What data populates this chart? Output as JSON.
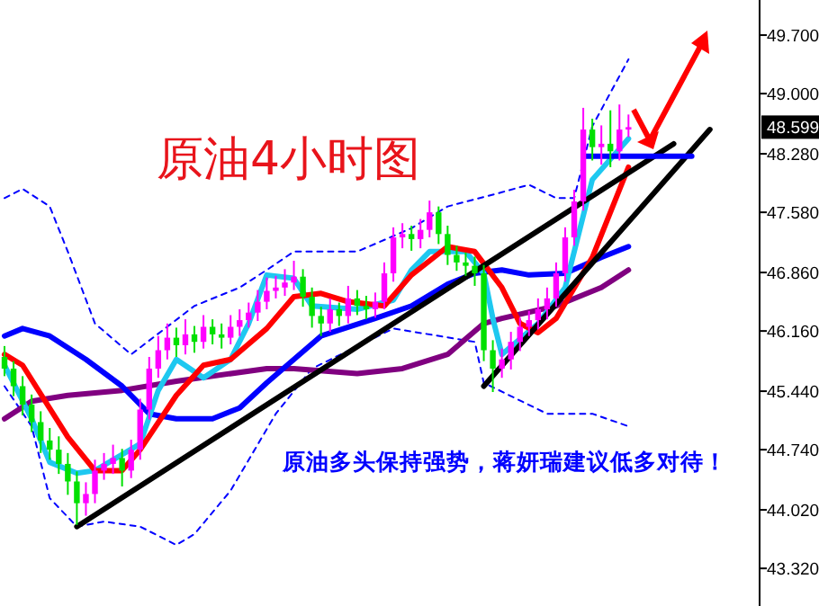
{
  "chart_data": {
    "type": "candlestick",
    "title": "原油4小时图",
    "annotations": [
      "原油多头保持强势，蒋妍瑞建议低多对待！",
      "48.599"
    ],
    "categories": [
      null,
      null,
      null,
      null,
      null,
      null,
      null,
      null,
      null,
      null,
      null,
      null,
      null,
      null,
      null,
      null,
      null,
      null,
      null,
      null,
      null,
      null,
      null,
      null,
      null,
      null,
      null,
      null,
      null,
      null,
      null,
      null,
      null,
      null,
      null,
      null,
      null,
      null,
      null,
      null,
      null,
      null,
      null,
      null,
      null,
      null,
      null,
      null,
      null,
      null,
      null,
      null,
      null,
      null,
      null,
      null,
      null,
      null,
      null,
      null,
      null,
      null,
      null,
      null,
      null,
      null,
      null,
      null,
      null,
      null,
      null,
      null,
      null,
      null,
      null,
      null,
      null,
      null,
      null,
      null,
      null,
      null,
      null,
      null
    ],
    "ohlc": [
      [
        45.85,
        45.98,
        45.62,
        45.71
      ],
      [
        45.71,
        45.8,
        45.38,
        45.5
      ],
      [
        45.5,
        45.62,
        45.15,
        45.28
      ],
      [
        45.28,
        45.4,
        44.95,
        45.07
      ],
      [
        45.07,
        45.2,
        44.7,
        44.85
      ],
      [
        44.85,
        45.0,
        44.62,
        44.74
      ],
      [
        44.74,
        44.9,
        44.45,
        44.57
      ],
      [
        44.57,
        44.7,
        44.2,
        44.36
      ],
      [
        44.36,
        44.48,
        43.84,
        44.1
      ],
      [
        44.1,
        44.35,
        43.95,
        44.21
      ],
      [
        44.21,
        44.62,
        44.1,
        44.49
      ],
      [
        44.49,
        44.7,
        44.38,
        44.57
      ],
      [
        44.57,
        44.8,
        44.45,
        44.64
      ],
      [
        44.64,
        44.75,
        44.3,
        44.49
      ],
      [
        44.49,
        44.86,
        44.4,
        44.74
      ],
      [
        44.74,
        45.35,
        44.62,
        45.22
      ],
      [
        45.22,
        45.85,
        45.1,
        45.71
      ],
      [
        45.71,
        46.1,
        45.6,
        45.93
      ],
      [
        45.93,
        46.25,
        45.82,
        46.08
      ],
      [
        46.08,
        46.2,
        45.85,
        45.99
      ],
      [
        45.99,
        46.3,
        45.88,
        46.12
      ],
      [
        46.12,
        46.22,
        45.9,
        46.03
      ],
      [
        46.03,
        46.35,
        45.95,
        46.21
      ],
      [
        46.21,
        46.3,
        46.0,
        46.12
      ],
      [
        46.12,
        46.25,
        45.95,
        46.08
      ],
      [
        46.08,
        46.35,
        46.0,
        46.21
      ],
      [
        46.21,
        46.42,
        46.1,
        46.29
      ],
      [
        46.29,
        46.5,
        46.2,
        46.38
      ],
      [
        46.38,
        46.65,
        46.28,
        46.51
      ],
      [
        46.51,
        46.8,
        46.42,
        46.64
      ],
      [
        46.64,
        46.82,
        46.55,
        46.68
      ],
      [
        46.68,
        46.9,
        46.58,
        46.74
      ],
      [
        46.74,
        47.0,
        46.65,
        46.81
      ],
      [
        46.81,
        46.9,
        46.45,
        46.57
      ],
      [
        46.57,
        46.68,
        46.2,
        46.34
      ],
      [
        46.34,
        46.45,
        46.1,
        46.25
      ],
      [
        46.25,
        46.55,
        46.15,
        46.42
      ],
      [
        46.42,
        46.5,
        46.22,
        46.34
      ],
      [
        46.34,
        46.7,
        46.25,
        46.55
      ],
      [
        46.55,
        46.65,
        46.35,
        46.46
      ],
      [
        46.46,
        46.58,
        46.3,
        46.42
      ],
      [
        46.42,
        46.62,
        46.32,
        46.51
      ],
      [
        46.51,
        46.98,
        46.42,
        46.85
      ],
      [
        46.85,
        47.4,
        46.75,
        47.28
      ],
      [
        47.28,
        47.45,
        47.15,
        47.32
      ],
      [
        47.32,
        47.42,
        47.12,
        47.26
      ],
      [
        47.26,
        47.5,
        47.15,
        47.37
      ],
      [
        47.37,
        47.72,
        47.28,
        47.58
      ],
      [
        47.58,
        47.65,
        47.2,
        47.32
      ],
      [
        47.32,
        47.42,
        46.95,
        47.07
      ],
      [
        47.07,
        47.18,
        46.88,
        46.98
      ],
      [
        46.98,
        47.1,
        46.82,
        46.94
      ],
      [
        46.94,
        47.05,
        46.7,
        46.85
      ],
      [
        46.85,
        46.95,
        45.8,
        45.93
      ],
      [
        45.93,
        46.05,
        45.43,
        45.71
      ],
      [
        45.71,
        45.95,
        45.6,
        45.82
      ],
      [
        45.82,
        46.15,
        45.7,
        46.03
      ],
      [
        46.03,
        46.32,
        45.92,
        46.21
      ],
      [
        46.21,
        46.4,
        46.1,
        46.29
      ],
      [
        46.29,
        46.55,
        46.18,
        46.42
      ],
      [
        46.42,
        46.68,
        46.3,
        46.55
      ],
      [
        46.55,
        46.98,
        46.45,
        46.85
      ],
      [
        46.85,
        47.4,
        46.75,
        47.28
      ],
      [
        47.28,
        47.85,
        47.18,
        47.71
      ],
      [
        47.71,
        48.83,
        47.6,
        48.57
      ],
      [
        48.57,
        48.7,
        48.2,
        48.36
      ],
      [
        48.36,
        48.62,
        48.15,
        48.4
      ],
      [
        48.4,
        48.8,
        48.12,
        48.31
      ],
      [
        48.31,
        48.87,
        48.2,
        48.57
      ],
      [
        48.57,
        48.75,
        48.48,
        48.599
      ],
      null,
      null,
      null,
      null,
      null,
      null,
      null,
      null,
      null,
      null,
      null,
      null,
      null,
      null
    ],
    "colors": [
      "#00e000",
      "#00e000",
      "#00e000",
      "#00e000",
      "#00e000",
      "#00e000",
      "#00e000",
      "#00e000",
      "#00e000",
      "#ff00ff",
      "#ff00ff",
      "#ff00ff",
      "#ff00ff",
      "#00e000",
      "#ff00ff",
      "#ff00ff",
      "#ff00ff",
      "#ff00ff",
      "#ff00ff",
      "#00e000",
      "#ff00ff",
      "#00e000",
      "#ff00ff",
      "#00e000",
      "#00e000",
      "#ff00ff",
      "#ff00ff",
      "#ff00ff",
      "#ff00ff",
      "#ff00ff",
      "#ff00ff",
      "#ff00ff",
      "#ff00ff",
      "#00e000",
      "#00e000",
      "#00e000",
      "#ff00ff",
      "#00e000",
      "#ff00ff",
      "#00e000",
      "#00e000",
      "#ff00ff",
      "#ff00ff",
      "#ff00ff",
      "#ff00ff",
      "#00e000",
      "#ff00ff",
      "#ff00ff",
      "#00e000",
      "#00e000",
      "#00e000",
      "#00e000",
      "#00e000",
      "#00e000",
      "#00e000",
      "#ff00ff",
      "#ff00ff",
      "#ff00ff",
      "#ff00ff",
      "#ff00ff",
      "#ff00ff",
      "#ff00ff",
      "#ff00ff",
      "#ff00ff",
      "#ff00ff",
      "#00e000",
      "#ff00ff",
      "#00e000",
      "#ff00ff",
      "#ff00ff",
      null,
      null,
      null,
      null,
      null,
      null,
      null,
      null,
      null,
      null,
      null,
      null,
      null,
      null
    ],
    "series": [
      {
        "type": "line",
        "color": "#0000ff",
        "line_style": "dashed",
        "values": [
          47.75,
          null,
          47.86,
          null,
          null,
          47.65,
          null,
          47.11,
          null,
          null,
          46.25,
          null,
          null,
          null,
          45.88,
          null,
          null,
          null,
          null,
          null,
          null,
          46.46,
          null,
          null,
          null,
          null,
          46.68,
          null,
          null,
          46.89,
          null,
          null,
          47.11,
          null,
          null,
          null,
          null,
          null,
          null,
          47.11,
          null,
          null,
          null,
          null,
          null,
          47.39,
          null,
          null,
          null,
          47.65,
          null,
          null,
          null,
          null,
          null,
          47.82,
          null,
          null,
          47.91,
          null,
          null,
          47.75,
          null,
          47.75,
          null,
          48.61,
          null,
          null,
          null,
          49.41,
          null,
          null,
          null,
          null,
          null,
          null,
          null,
          null,
          null,
          null,
          null,
          null,
          null,
          null
        ]
      },
      {
        "type": "line",
        "color": "#0000ff",
        "line_style": "dashed",
        "values": [
          45.5,
          null,
          null,
          45.02,
          null,
          44.16,
          null,
          null,
          43.82,
          null,
          null,
          43.88,
          null,
          null,
          null,
          43.82,
          null,
          null,
          null,
          43.6,
          null,
          43.73,
          null,
          null,
          null,
          44.25,
          null,
          null,
          null,
          null,
          45.17,
          null,
          null,
          null,
          45.71,
          null,
          null,
          null,
          null,
          null,
          null,
          null,
          null,
          46.19,
          null,
          null,
          null,
          null,
          null,
          null,
          null,
          null,
          46.03,
          45.54,
          null,
          null,
          null,
          null,
          null,
          null,
          45.17,
          null,
          null,
          null,
          null,
          45.17,
          null,
          null,
          null,
          45.02,
          null,
          null,
          null,
          null,
          null,
          null,
          null,
          null,
          null,
          null,
          null,
          null,
          null,
          null
        ]
      },
      {
        "type": "line",
        "color": "#800080",
        "line_style": "solid",
        "values": [
          45.11,
          null,
          null,
          45.32,
          null,
          null,
          null,
          45.39,
          null,
          null,
          null,
          null,
          null,
          45.45,
          null,
          null,
          null,
          null,
          null,
          45.56,
          null,
          null,
          null,
          null,
          null,
          null,
          null,
          null,
          null,
          45.71,
          null,
          null,
          45.71,
          null,
          null,
          null,
          null,
          null,
          null,
          45.65,
          null,
          null,
          null,
          null,
          45.71,
          null,
          null,
          null,
          null,
          45.88,
          null,
          null,
          null,
          46.25,
          null,
          46.31,
          null,
          null,
          null,
          null,
          null,
          46.46,
          null,
          null,
          null,
          null,
          46.68,
          null,
          null,
          46.89,
          null,
          null,
          null,
          null,
          null,
          null,
          null,
          null,
          null,
          null,
          null,
          null,
          null,
          null
        ]
      },
      {
        "type": "line",
        "color": "#0000ff",
        "line_style": "solid",
        "values": [
          46.1,
          null,
          46.19,
          null,
          null,
          46.1,
          null,
          null,
          null,
          45.82,
          null,
          null,
          null,
          45.5,
          null,
          null,
          45.17,
          null,
          null,
          45.11,
          null,
          null,
          null,
          45.11,
          null,
          null,
          45.24,
          null,
          null,
          45.54,
          null,
          null,
          null,
          null,
          null,
          46.1,
          null,
          null,
          null,
          null,
          null,
          46.31,
          null,
          null,
          null,
          46.46,
          null,
          null,
          null,
          46.72,
          null,
          null,
          46.85,
          null,
          null,
          46.89,
          null,
          null,
          46.83,
          null,
          null,
          null,
          46.85,
          null,
          null,
          null,
          47.04,
          null,
          null,
          47.17,
          null,
          null,
          null,
          null,
          null,
          null,
          null,
          null,
          null,
          null,
          null,
          null,
          null,
          null
        ]
      },
      {
        "type": "line",
        "color": "#1ec8f0",
        "line_style": "solid",
        "values": [
          45.75,
          null,
          null,
          45.11,
          null,
          44.59,
          null,
          null,
          44.46,
          null,
          44.49,
          null,
          null,
          null,
          null,
          44.81,
          null,
          45.45,
          null,
          45.82,
          null,
          null,
          45.6,
          null,
          null,
          45.82,
          null,
          46.25,
          null,
          46.83,
          null,
          null,
          46.79,
          null,
          46.46,
          null,
          null,
          null,
          null,
          46.42,
          null,
          null,
          null,
          46.53,
          null,
          46.89,
          null,
          47.11,
          null,
          null,
          null,
          47.11,
          null,
          46.85,
          46.31,
          45.88,
          null,
          null,
          null,
          46.25,
          null,
          null,
          46.68,
          null,
          null,
          47.97,
          null,
          null,
          null,
          48.46,
          null,
          null,
          null,
          null,
          null,
          null,
          null,
          null,
          null,
          null,
          null,
          null,
          null,
          null
        ]
      },
      {
        "type": "line",
        "color": "#ff0000",
        "line_style": "solid",
        "values": [
          45.88,
          null,
          45.75,
          null,
          null,
          null,
          null,
          44.89,
          null,
          null,
          44.49,
          null,
          null,
          44.49,
          null,
          44.74,
          null,
          null,
          null,
          45.39,
          null,
          null,
          45.75,
          null,
          null,
          45.82,
          null,
          null,
          null,
          46.19,
          null,
          null,
          46.57,
          null,
          null,
          46.61,
          null,
          null,
          46.51,
          null,
          null,
          null,
          46.46,
          null,
          null,
          46.83,
          null,
          null,
          null,
          47.17,
          null,
          null,
          47.11,
          null,
          null,
          46.68,
          null,
          46.25,
          null,
          46.14,
          null,
          46.31,
          null,
          null,
          null,
          47.04,
          null,
          null,
          null,
          48.12,
          null,
          null,
          null,
          null,
          null,
          null,
          null,
          null,
          null,
          null,
          null,
          null,
          null,
          null
        ]
      },
      {
        "type": "line",
        "color": "#000000",
        "line_style": "solid",
        "values": [
          null,
          null,
          null,
          null,
          null,
          null,
          null,
          null,
          43.82,
          null,
          null,
          null,
          null,
          null,
          null,
          null,
          null,
          null,
          null,
          null,
          null,
          null,
          null,
          null,
          null,
          null,
          null,
          null,
          null,
          null,
          null,
          null,
          null,
          null,
          null,
          null,
          null,
          null,
          null,
          null,
          null,
          null,
          null,
          null,
          null,
          null,
          null,
          null,
          null,
          null,
          null,
          null,
          null,
          null,
          null,
          null,
          null,
          null,
          null,
          null,
          null,
          null,
          null,
          null,
          null,
          null,
          null,
          null,
          null,
          null,
          null,
          null,
          null,
          null,
          48.4,
          null,
          null,
          null,
          null,
          null,
          null,
          null,
          null,
          null
        ]
      },
      {
        "type": "line",
        "color": "#000000",
        "line_style": "solid",
        "values": [
          null,
          null,
          null,
          null,
          null,
          null,
          null,
          null,
          null,
          null,
          null,
          null,
          null,
          null,
          null,
          null,
          null,
          null,
          null,
          null,
          null,
          null,
          null,
          null,
          null,
          null,
          null,
          null,
          null,
          null,
          null,
          null,
          null,
          null,
          null,
          null,
          null,
          null,
          null,
          null,
          null,
          null,
          null,
          null,
          null,
          null,
          null,
          null,
          null,
          null,
          null,
          null,
          null,
          45.5,
          null,
          null,
          null,
          null,
          null,
          null,
          null,
          null,
          null,
          null,
          null,
          null,
          null,
          null,
          null,
          null,
          null,
          null,
          null,
          null,
          null,
          null,
          null,
          null,
          48.57,
          null,
          null,
          null,
          null,
          null
        ]
      },
      {
        "type": "line",
        "color": "#0000ff",
        "line_style": "solid",
        "values": [
          null,
          null,
          null,
          null,
          null,
          null,
          null,
          null,
          null,
          null,
          null,
          null,
          null,
          null,
          null,
          null,
          null,
          null,
          null,
          null,
          null,
          null,
          null,
          null,
          null,
          null,
          null,
          null,
          null,
          null,
          null,
          null,
          null,
          null,
          null,
          null,
          null,
          null,
          null,
          null,
          null,
          null,
          null,
          null,
          null,
          null,
          null,
          null,
          null,
          null,
          null,
          null,
          null,
          null,
          null,
          null,
          null,
          null,
          null,
          null,
          null,
          null,
          null,
          null,
          48.25,
          null,
          null,
          null,
          null,
          null,
          null,
          null,
          null,
          null,
          null,
          null,
          48.25,
          null,
          null,
          null,
          null,
          null,
          null,
          null
        ]
      }
    ],
    "ylim": [
      42.87,
      50.12
    ],
    "yticks": [
      {
        "value": 49.7,
        "label": "49.700"
      },
      {
        "value": 49.0,
        "label": "49.000"
      },
      {
        "value": 48.28,
        "label": "48.280"
      },
      {
        "value": 47.58,
        "label": "47.580"
      },
      {
        "value": 46.86,
        "label": "46.860"
      },
      {
        "value": 46.16,
        "label": "46.160"
      },
      {
        "value": 45.44,
        "label": "45.440"
      },
      {
        "value": 44.74,
        "label": "44.740"
      },
      {
        "value": 44.02,
        "label": "44.020"
      },
      {
        "value": 43.32,
        "label": "43.320"
      }
    ],
    "tick_labels": "y",
    "grid": false
  }
}
